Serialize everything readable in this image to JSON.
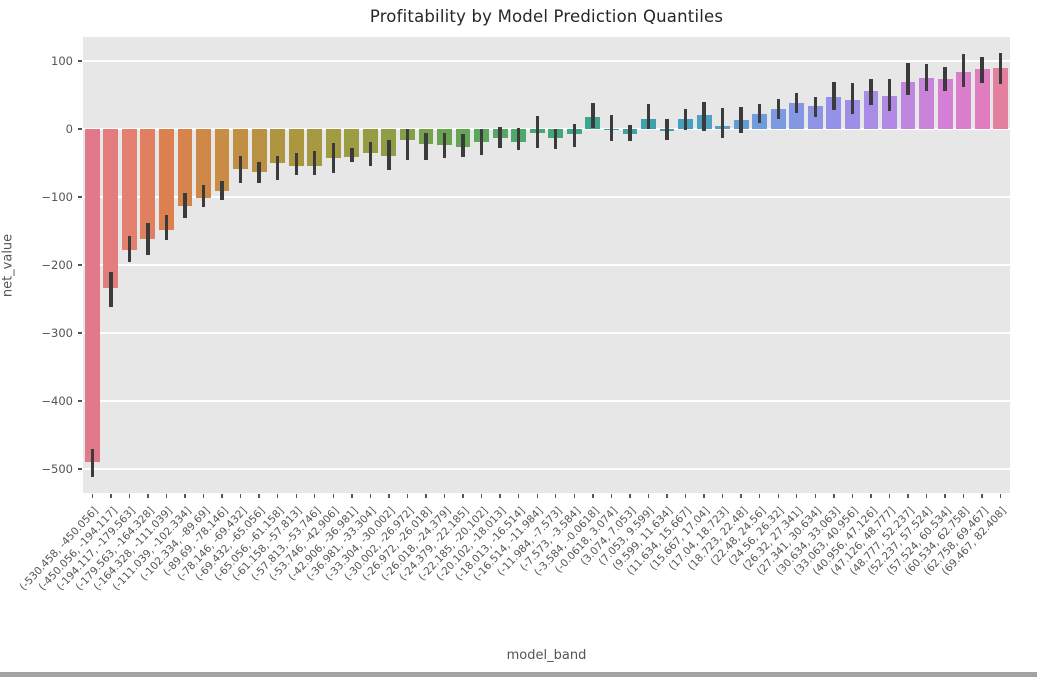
{
  "figure": {
    "background": "#ffffff",
    "plot_background": "#e7e7e7",
    "grid_color": "#ffffff",
    "errorbar_color": "#3b3b3b",
    "tick_color": "#555555",
    "title_color": "#262626"
  },
  "chart_data": {
    "type": "bar",
    "title": "Profitability by Model Prediction Quantiles",
    "xlabel": "model_band",
    "ylabel": "net_value",
    "grid": true,
    "legend": false,
    "ylim": [
      -535,
      135
    ],
    "yticks": [
      100,
      0,
      -100,
      -200,
      -300,
      -400,
      -500
    ],
    "ytick_labels": [
      "100",
      "0",
      "−100",
      "−200",
      "−300",
      "−400",
      "−500"
    ],
    "palette_note": "seaborn husl 50-color palette, desaturated",
    "categories": [
      "(-530.458, -450.056]",
      "(-450.056, -194.117]",
      "(-194.117, -179.563]",
      "(-179.563, -164.328]",
      "(-164.328, -111.039]",
      "(-111.039, -102.334]",
      "(-102.334, -89.69]",
      "(-89.69, -78.146]",
      "(-78.146, -69.432]",
      "(-69.432, -65.056]",
      "(-65.056, -61.158]",
      "(-61.158, -57.813]",
      "(-57.813, -53.746]",
      "(-53.746, -42.906]",
      "(-42.906, -36.981]",
      "(-36.981, -33.304]",
      "(-33.304, -30.002]",
      "(-30.002, -26.972]",
      "(-26.972, -26.018]",
      "(-26.018, -24.379]",
      "(-24.379, -22.185]",
      "(-22.185, -20.102]",
      "(-20.102, -18.013]",
      "(-18.013, -16.514]",
      "(-16.514, -11.984]",
      "(-11.984, -7.573]",
      "(-7.573, -3.584]",
      "(-3.584, -0.0618]",
      "(-0.0618, 3.074]",
      "(3.074, 7.053]",
      "(7.053, 9.599]",
      "(9.599, 11.634]",
      "(11.634, 15.667]",
      "(15.667, 17.04]",
      "(17.04, 18.723]",
      "(18.723, 22.48]",
      "(22.48, 24.56]",
      "(24.56, 26.32]",
      "(26.32, 27.341]",
      "(27.341, 30.634]",
      "(30.634, 33.063]",
      "(33.063, 40.956]",
      "(40.956, 47.126]",
      "(47.126, 48.777]",
      "(48.777, 52.237]",
      "(52.237, 57.524]",
      "(57.524, 60.534]",
      "(60.534, 62.758]",
      "(62.758, 69.467]",
      "(69.467, 82.408]"
    ],
    "values": [
      -490,
      -234,
      -178,
      -162,
      -148,
      -113,
      -102,
      -92,
      -59,
      -63,
      -50,
      -54,
      -55,
      -43,
      -42,
      -36,
      -40,
      -17,
      -22,
      -24,
      -26,
      -20,
      -13,
      -20,
      -6,
      -14,
      -8,
      18,
      -2,
      -7,
      15,
      -3,
      14,
      21,
      4,
      13,
      22,
      29,
      38,
      33,
      47,
      43,
      55,
      48,
      69,
      75,
      74,
      84,
      88,
      89
    ],
    "error_low": [
      -512,
      -261,
      -196,
      -185,
      -163,
      -131,
      -115,
      -104,
      -80,
      -79,
      -75,
      -68,
      -68,
      -65,
      -48,
      -55,
      -60,
      -45,
      -46,
      -43,
      -42,
      -39,
      -28,
      -31,
      -28,
      -29,
      -26,
      2,
      -18,
      -18,
      0,
      -17,
      -2,
      -3,
      -14,
      -6,
      8,
      15,
      24,
      18,
      28,
      22,
      35,
      26,
      50,
      55,
      55,
      62,
      68,
      66
    ],
    "error_high": [
      -470,
      -210,
      -158,
      -138,
      -126,
      -94,
      -82,
      -77,
      -40,
      -48,
      -40,
      -36,
      -33,
      -21,
      -28,
      -20,
      -16,
      0,
      -6,
      -6,
      -8,
      0,
      3,
      1,
      19,
      0,
      7,
      38,
      20,
      6,
      36,
      15,
      29,
      39,
      31,
      32,
      36,
      44,
      53,
      47,
      69,
      68,
      74,
      73,
      97,
      95,
      91,
      110,
      106,
      112
    ],
    "color_stops": [
      {
        "index": 0,
        "color": "#e2798b"
      },
      {
        "index": 2,
        "color": "#e3806f"
      },
      {
        "index": 4,
        "color": "#dd8050"
      },
      {
        "index": 7,
        "color": "#c98c45"
      },
      {
        "index": 10,
        "color": "#b09540"
      },
      {
        "index": 13,
        "color": "#a39b42"
      },
      {
        "index": 16,
        "color": "#8f9d44"
      },
      {
        "index": 19,
        "color": "#6ba450"
      },
      {
        "index": 22,
        "color": "#55a863"
      },
      {
        "index": 25,
        "color": "#43a878"
      },
      {
        "index": 28,
        "color": "#3ba49c"
      },
      {
        "index": 31,
        "color": "#3fa0b5"
      },
      {
        "index": 34,
        "color": "#55a0cc"
      },
      {
        "index": 37,
        "color": "#7c9ae2"
      },
      {
        "index": 40,
        "color": "#9691e8"
      },
      {
        "index": 43,
        "color": "#b289e4"
      },
      {
        "index": 46,
        "color": "#d580d6"
      },
      {
        "index": 48,
        "color": "#e07cc0"
      },
      {
        "index": 49,
        "color": "#e2809e"
      }
    ]
  }
}
